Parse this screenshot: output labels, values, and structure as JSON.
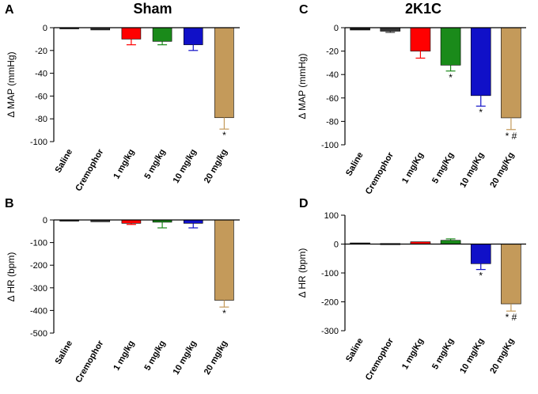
{
  "colors": {
    "Saline": "#1a1a1a",
    "Cremophor": "#333333",
    "1 mg/kg": "#ff0000",
    "5 mg/kg": "#1a8a1a",
    "10 mg/kg": "#1010c8",
    "20 mg/kg": "#c49a5a"
  },
  "titles": {
    "left": "Sham",
    "right": "2K1C"
  },
  "chart_data": [
    {
      "id": "A",
      "panel_letter": "A",
      "type": "bar",
      "title": "Sham",
      "ylabel": "Δ MAP (mmHg)",
      "categories": [
        "Saline",
        "Cremophor",
        "1 mg/kg",
        "5 mg/kg",
        "10 mg/kg",
        "20 mg/kg"
      ],
      "color_keys": [
        "Saline",
        "Cremophor",
        "1 mg/kg",
        "5 mg/kg",
        "10 mg/kg",
        "20 mg/kg"
      ],
      "values": [
        -1,
        -2,
        -10,
        -12,
        -15,
        -79
      ],
      "errors": [
        0,
        0,
        5,
        3,
        5,
        10
      ],
      "annotations": [
        "",
        "",
        "",
        "",
        "",
        "*"
      ],
      "ylim": [
        -100,
        0
      ],
      "yticks": [
        0,
        -20,
        -40,
        -60,
        -80,
        -100
      ]
    },
    {
      "id": "B",
      "panel_letter": "B",
      "type": "bar",
      "title": "",
      "ylabel": "Δ HR (bpm)",
      "categories": [
        "Saline",
        "Cremophor",
        "1 mg/kg",
        "5 mg/kg",
        "10 mg/kg",
        "20 mg/kg"
      ],
      "color_keys": [
        "Saline",
        "Cremophor",
        "1 mg/kg",
        "5 mg/kg",
        "10 mg/kg",
        "20 mg/kg"
      ],
      "values": [
        -5,
        -8,
        -15,
        -10,
        -15,
        -355
      ],
      "errors": [
        0,
        0,
        5,
        25,
        20,
        30
      ],
      "annotations": [
        "",
        "",
        "",
        "",
        "",
        "*"
      ],
      "ylim": [
        -500,
        0
      ],
      "yticks": [
        0,
        -100,
        -200,
        -300,
        -400,
        -500
      ]
    },
    {
      "id": "C",
      "panel_letter": "C",
      "type": "bar",
      "title": "2K1C",
      "ylabel": "Δ MAP (mmHg)",
      "categories": [
        "Saline",
        "Cremophor",
        "1 mg/Kg",
        "5 mg/Kg",
        "10 mg/Kg",
        "20 mg/Kg"
      ],
      "color_keys": [
        "Saline",
        "Cremophor",
        "1 mg/kg",
        "5 mg/kg",
        "10 mg/kg",
        "20 mg/kg"
      ],
      "values": [
        -2,
        -3,
        -20,
        -32,
        -58,
        -77
      ],
      "errors": [
        0,
        1,
        6,
        5,
        9,
        10
      ],
      "annotations": [
        "",
        "",
        "",
        "*",
        "*",
        "* #"
      ],
      "ylim": [
        -100,
        0
      ],
      "yticks": [
        0,
        -20,
        -40,
        -60,
        -80,
        -100
      ]
    },
    {
      "id": "D",
      "panel_letter": "D",
      "type": "bar",
      "title": "",
      "ylabel": "Δ HR (bpm)",
      "categories": [
        "Saline",
        "Cremophor",
        "1 mg/Kg",
        "5 mg/Kg",
        "10 mg/Kg",
        "20 mg/Kg"
      ],
      "color_keys": [
        "Saline",
        "Cremophor",
        "1 mg/kg",
        "5 mg/kg",
        "10 mg/kg",
        "20 mg/kg"
      ],
      "values": [
        4,
        2,
        8,
        13,
        -68,
        -207
      ],
      "errors": [
        0,
        0,
        0,
        5,
        20,
        25
      ],
      "annotations": [
        "",
        "",
        "",
        "",
        "*",
        "* #"
      ],
      "ylim": [
        -300,
        100
      ],
      "yticks": [
        100,
        0,
        -100,
        -200,
        -300
      ]
    }
  ]
}
